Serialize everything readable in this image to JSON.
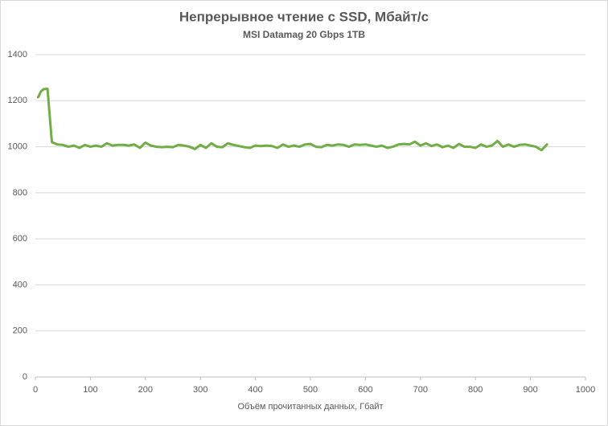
{
  "chart_data": {
    "type": "line",
    "title": "Непрерывное чтение с SSD, Мбайт/с",
    "subtitle": "MSI Datamag 20 Gbps 1TB",
    "x_label": "Объём прочитанных данных, Гбайт",
    "x": [
      5,
      10,
      15,
      22,
      30,
      40,
      50,
      60,
      70,
      80,
      90,
      100,
      110,
      120,
      130,
      140,
      150,
      160,
      170,
      180,
      190,
      200,
      210,
      220,
      230,
      240,
      250,
      260,
      270,
      280,
      290,
      300,
      310,
      320,
      330,
      340,
      350,
      360,
      370,
      380,
      390,
      400,
      410,
      420,
      430,
      440,
      450,
      460,
      470,
      480,
      490,
      500,
      510,
      520,
      530,
      540,
      550,
      560,
      570,
      580,
      590,
      600,
      610,
      620,
      630,
      640,
      650,
      660,
      670,
      680,
      690,
      700,
      710,
      720,
      730,
      740,
      750,
      760,
      770,
      780,
      790,
      800,
      810,
      820,
      830,
      840,
      850,
      860,
      870,
      880,
      890,
      900,
      910,
      920,
      930
    ],
    "series": [
      {
        "name": "MSI Datamag 20 Gbps 1TB",
        "color": "#70ad47",
        "values": [
          1215,
          1240,
          1250,
          1252,
          1020,
          1010,
          1008,
          1000,
          1005,
          995,
          1008,
          1000,
          1005,
          1000,
          1015,
          1005,
          1008,
          1008,
          1005,
          1010,
          995,
          1018,
          1005,
          1000,
          998,
          1000,
          998,
          1008,
          1005,
          1000,
          990,
          1008,
          995,
          1015,
          1000,
          998,
          1015,
          1008,
          1003,
          998,
          995,
          1005,
          1003,
          1005,
          1003,
          995,
          1010,
          1000,
          1005,
          1000,
          1010,
          1012,
          1000,
          998,
          1008,
          1005,
          1010,
          1008,
          1000,
          1010,
          1008,
          1010,
          1005,
          1000,
          1005,
          995,
          1000,
          1010,
          1012,
          1010,
          1022,
          1005,
          1015,
          1003,
          1010,
          998,
          1005,
          995,
          1012,
          1000,
          1000,
          995,
          1010,
          1000,
          1005,
          1025,
          1000,
          1010,
          1000,
          1008,
          1010,
          1005,
          1000,
          985,
          1010
        ]
      }
    ],
    "xlim": [
      0,
      1000
    ],
    "xticks": [
      0,
      100,
      200,
      300,
      400,
      500,
      600,
      700,
      800,
      900,
      1000
    ],
    "ylim": [
      0,
      1400
    ],
    "yticks": [
      0,
      200,
      400,
      600,
      800,
      1000,
      1200,
      1400
    ],
    "grid": true
  }
}
